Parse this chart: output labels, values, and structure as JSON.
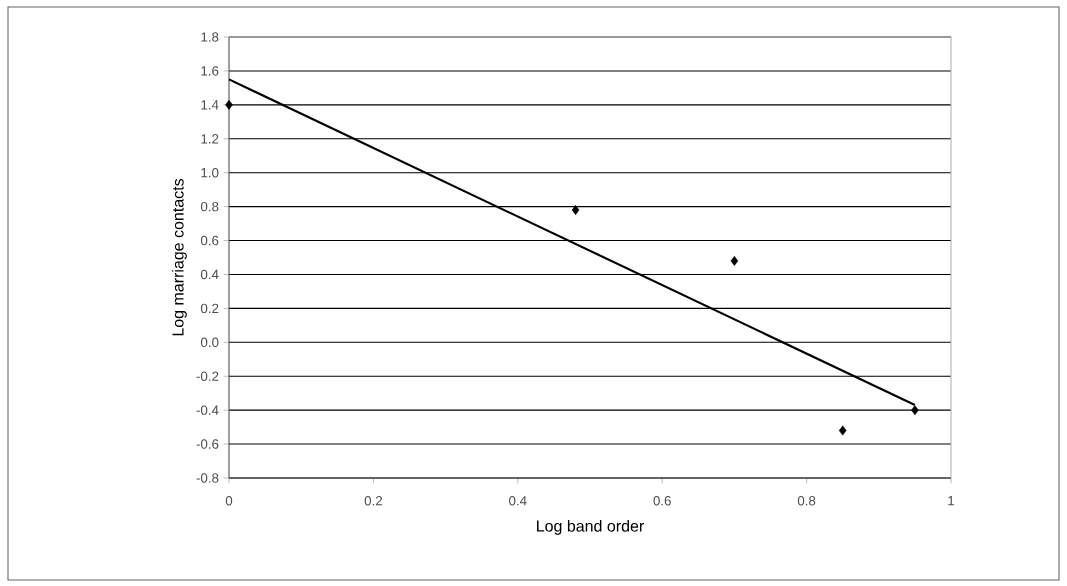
{
  "chart_data": {
    "type": "scatter",
    "xlabel": "Log band order",
    "ylabel": "Log marriage contacts",
    "series": [
      {
        "color": "#000000",
        "marker": "diamond",
        "x": [
          0,
          0.48,
          0.7,
          0.85,
          0.95
        ],
        "values": [
          1.4,
          0.78,
          0.48,
          -0.52,
          -0.4
        ]
      },
      {
        "type": "line",
        "color": "#000000",
        "marker": "none",
        "x": [
          0,
          0.95
        ],
        "values": [
          1.55,
          -0.37
        ]
      }
    ],
    "xlim": [
      0,
      1
    ],
    "xticks": [
      0,
      0.2,
      0.4,
      0.6,
      0.8,
      1
    ],
    "ylim": [
      -0.8,
      1.8
    ],
    "yticks": [
      {
        "value": -0.8,
        "label": "-0.8"
      },
      {
        "value": -0.6,
        "label": "-0.6"
      },
      {
        "value": -0.4,
        "label": "-0.4"
      },
      {
        "value": -0.2,
        "label": "-0.2"
      },
      {
        "value": 0,
        "label": "0.0"
      },
      {
        "value": 0.2,
        "label": "0.2"
      },
      {
        "value": 0.4,
        "label": "0.4"
      },
      {
        "value": 0.6,
        "label": "0.6"
      },
      {
        "value": 0.8,
        "label": "0.8"
      },
      {
        "value": 1,
        "label": "1.0"
      },
      {
        "value": 1.2,
        "label": "1.2"
      },
      {
        "value": 1.4,
        "label": "1.4"
      },
      {
        "value": 1.6,
        "label": "1.6"
      },
      {
        "value": 1.8,
        "label": "1.8"
      }
    ],
    "grid": "y"
  }
}
